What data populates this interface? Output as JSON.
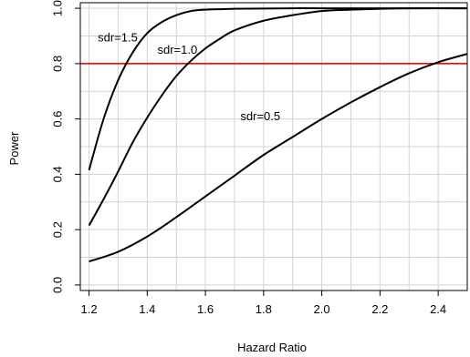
{
  "chart_data": {
    "type": "line",
    "title": "",
    "xlabel": "Hazard Ratio",
    "ylabel": "Power",
    "xlim": [
      1.17,
      2.5
    ],
    "ylim": [
      -0.02,
      1.02
    ],
    "x_ticks": [
      1.2,
      1.4,
      1.6,
      1.8,
      2.0,
      2.2,
      2.4
    ],
    "x_tick_labels": [
      "1.2",
      "1.4",
      "1.6",
      "1.8",
      "2.0",
      "2.2",
      "2.4"
    ],
    "y_ticks": [
      0.0,
      0.2,
      0.4,
      0.6,
      0.8,
      1.0
    ],
    "y_tick_labels": [
      "0.0",
      "0.2",
      "0.4",
      "0.6",
      "0.8",
      "1.0"
    ],
    "grid": true,
    "reference_line": {
      "y": 0.8,
      "color": "#ff0000"
    },
    "series": [
      {
        "name": "sdr=1.5",
        "color": "#000000",
        "x": [
          1.2,
          1.25,
          1.3,
          1.35,
          1.4,
          1.45,
          1.5,
          1.55,
          1.6,
          1.7,
          1.8,
          1.9,
          2.0,
          2.2,
          2.4,
          2.5
        ],
        "y": [
          0.415,
          0.6,
          0.74,
          0.84,
          0.91,
          0.95,
          0.975,
          0.99,
          0.995,
          0.998,
          0.999,
          1.0,
          1.0,
          1.0,
          1.0,
          1.0
        ]
      },
      {
        "name": "sdr=1.0",
        "color": "#000000",
        "x": [
          1.2,
          1.25,
          1.3,
          1.35,
          1.4,
          1.45,
          1.5,
          1.55,
          1.6,
          1.65,
          1.7,
          1.8,
          1.9,
          2.0,
          2.1,
          2.2,
          2.3,
          2.5
        ],
        "y": [
          0.215,
          0.31,
          0.41,
          0.515,
          0.605,
          0.685,
          0.755,
          0.81,
          0.855,
          0.89,
          0.92,
          0.955,
          0.975,
          0.99,
          0.995,
          0.998,
          1.0,
          1.0
        ]
      },
      {
        "name": "sdr=0.5",
        "color": "#000000",
        "x": [
          1.2,
          1.3,
          1.4,
          1.5,
          1.6,
          1.7,
          1.8,
          1.9,
          2.0,
          2.1,
          2.2,
          2.3,
          2.4,
          2.5
        ],
        "y": [
          0.085,
          0.12,
          0.175,
          0.245,
          0.32,
          0.395,
          0.47,
          0.535,
          0.6,
          0.66,
          0.715,
          0.765,
          0.805,
          0.835
        ]
      }
    ],
    "annotations": [
      {
        "text": "sdr=1.5",
        "x": 1.23,
        "y": 0.88
      },
      {
        "text": "sdr=1.0",
        "x": 1.435,
        "y": 0.835
      },
      {
        "text": "sdr=0.5",
        "x": 1.72,
        "y": 0.595
      }
    ]
  }
}
